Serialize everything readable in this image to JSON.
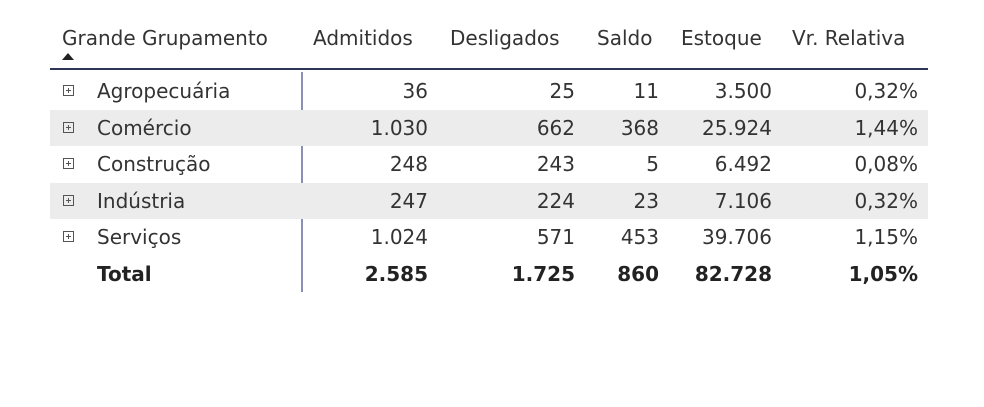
{
  "table": {
    "headers": [
      "Grande Grupamento",
      "Admitidos",
      "Desligados",
      "Saldo",
      "Estoque",
      "Vr. Relativa"
    ],
    "rows": [
      [
        "Agropecuária",
        "36",
        "25",
        "11",
        "3.500",
        "0,32%"
      ],
      [
        "Comércio",
        "1.030",
        "662",
        "368",
        "25.924",
        "1,44%"
      ],
      [
        "Construção",
        "248",
        "243",
        "5",
        "6.492",
        "0,08%"
      ],
      [
        "Indústria",
        "247",
        "224",
        "23",
        "7.106",
        "0,32%"
      ],
      [
        "Serviços",
        "1.024",
        "571",
        "453",
        "39.706",
        "1,15%"
      ]
    ],
    "total": [
      "Total",
      "2.585",
      "1.725",
      "860",
      "82.728",
      "1,05%"
    ]
  }
}
